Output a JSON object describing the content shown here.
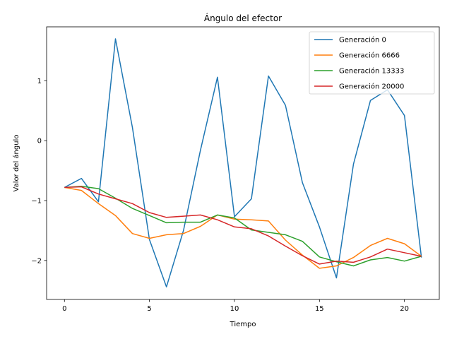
{
  "chart_data": {
    "type": "line",
    "title": "Ángulo del efector",
    "xlabel": "Tiempo",
    "ylabel": "Valor del ángulo",
    "xlim": [
      -1.05,
      22.05
    ],
    "ylim": [
      -2.65,
      1.9
    ],
    "xticks": [
      0,
      5,
      10,
      15,
      20
    ],
    "yticks": [
      -2,
      -1,
      0,
      1
    ],
    "grid": false,
    "legend_position": "top-right",
    "x": [
      0,
      1,
      2,
      3,
      4,
      5,
      6,
      7,
      8,
      9,
      10,
      11,
      12,
      13,
      14,
      15,
      16,
      17,
      18,
      19,
      20,
      21
    ],
    "series": [
      {
        "name": "Generación 0",
        "color": "#1f77b4",
        "values": [
          -0.78,
          -0.63,
          -1.02,
          1.7,
          0.22,
          -1.65,
          -2.44,
          -1.5,
          -0.16,
          1.06,
          -1.27,
          -0.97,
          1.08,
          0.59,
          -0.7,
          -1.44,
          -2.29,
          -0.39,
          0.67,
          0.85,
          0.42,
          -1.95
        ]
      },
      {
        "name": "Generación 6666",
        "color": "#ff7f0e",
        "values": [
          -0.78,
          -0.83,
          -1.05,
          -1.25,
          -1.55,
          -1.63,
          -1.57,
          -1.55,
          -1.43,
          -1.24,
          -1.31,
          -1.32,
          -1.34,
          -1.66,
          -1.91,
          -2.13,
          -2.09,
          -1.95,
          -1.75,
          -1.63,
          -1.72,
          -1.93
        ]
      },
      {
        "name": "Generación 13333",
        "color": "#2ca02c",
        "values": [
          -0.78,
          -0.76,
          -0.8,
          -0.96,
          -1.13,
          -1.25,
          -1.37,
          -1.36,
          -1.36,
          -1.24,
          -1.29,
          -1.49,
          -1.53,
          -1.57,
          -1.68,
          -1.94,
          -2.02,
          -2.09,
          -1.99,
          -1.95,
          -2.01,
          -1.93
        ]
      },
      {
        "name": "Generación 20000",
        "color": "#d62728",
        "values": [
          -0.78,
          -0.77,
          -0.89,
          -0.97,
          -1.05,
          -1.2,
          -1.28,
          -1.26,
          -1.24,
          -1.32,
          -1.44,
          -1.47,
          -1.59,
          -1.76,
          -1.92,
          -2.06,
          -2.01,
          -2.03,
          -1.94,
          -1.81,
          -1.87,
          -1.93
        ]
      }
    ]
  }
}
